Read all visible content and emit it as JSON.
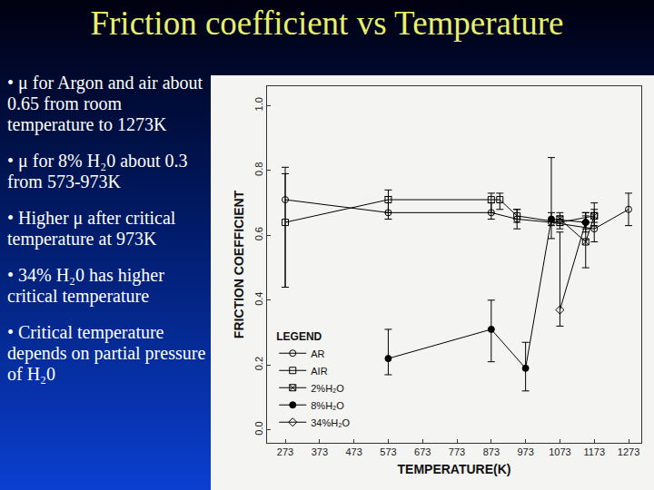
{
  "slide": {
    "title": "Friction coefficient vs Temperature",
    "bullets": [
      "μ for Argon and air about 0.65 from room temperature to 1273K",
      "μ for 8% H₂0 about 0.3 from 573-973K",
      "Higher μ after critical temperature at 973K",
      "34% H₂0 has higher critical temperature",
      "Critical temperature depends on partial pressure of H₂0"
    ]
  },
  "chart_data": {
    "type": "scatter",
    "x_label": "TEMPERATURE(K)",
    "y_label": "FRICTION COEFFICIENT",
    "xlim": [
      220,
      1310
    ],
    "xticks": [
      273,
      373,
      473,
      573,
      673,
      773,
      873,
      973,
      1073,
      1173,
      1273
    ],
    "ylim": [
      -0.04,
      1.06
    ],
    "yticks": [
      {
        "value": 0,
        "label": "0.0"
      },
      0.2,
      0.4,
      0.6,
      0.8,
      {
        "value": 1,
        "label": "1.0"
      }
    ],
    "grid": false,
    "legend": "lower left",
    "legend_title": "LEGEND",
    "line_style": "solid",
    "series": [
      {
        "name": "AR",
        "color": "#000000",
        "marker": "circle-open",
        "x": [
          273,
          573,
          873,
          948,
          1048,
          1173,
          1273
        ],
        "values": [
          0.71,
          0.67,
          0.67,
          0.65,
          0.64,
          0.62,
          0.68
        ],
        "error_plus": [
          0.1,
          0.05,
          0.03,
          0.03,
          0.2,
          0.05,
          0.05
        ],
        "error_minus": [
          0.27,
          0.02,
          0.02,
          0.03,
          0.05,
          0.04,
          0.05
        ]
      },
      {
        "name": "AIR",
        "color": "#000000",
        "marker": "square-open",
        "x": [
          273,
          573,
          873,
          898,
          948,
          1073,
          1173
        ],
        "values": [
          0.64,
          0.71,
          0.71,
          0.71,
          0.66,
          0.64,
          0.66
        ],
        "error_plus": [
          0.15,
          0.03,
          0.02,
          0.02,
          0.02,
          0.02,
          0.04
        ],
        "error_minus": [
          0.2,
          0.04,
          0.04,
          0.03,
          0.02,
          0.02,
          0.03
        ]
      },
      {
        "name": "2%H₂O",
        "color": "#000000",
        "marker": "square-x-open",
        "x": [
          1073,
          1148,
          1173
        ],
        "values": [
          0.65,
          0.58,
          0.66
        ],
        "error_plus": [
          0.02,
          0.09,
          0.02
        ],
        "error_minus": [
          0.02,
          0.08,
          0.02
        ]
      },
      {
        "name": "8%H₂O",
        "color": "#000000",
        "marker": "circle",
        "x": [
          573,
          873,
          973,
          1048,
          1148
        ],
        "values": [
          0.22,
          0.31,
          0.19,
          0.65,
          0.64
        ],
        "error_plus": [
          0.09,
          0.09,
          0.08,
          0.02,
          0.03
        ],
        "error_minus": [
          0.05,
          0.1,
          0.07,
          0.02,
          0.03
        ]
      },
      {
        "name": "34%H₂O",
        "color": "#000000",
        "marker": "diamond-open",
        "x": [
          1073,
          1148
        ],
        "values": [
          0.37,
          0.64
        ],
        "error_plus": [
          0.24,
          0.02
        ],
        "error_minus": [
          0.05,
          0.02
        ]
      }
    ]
  }
}
